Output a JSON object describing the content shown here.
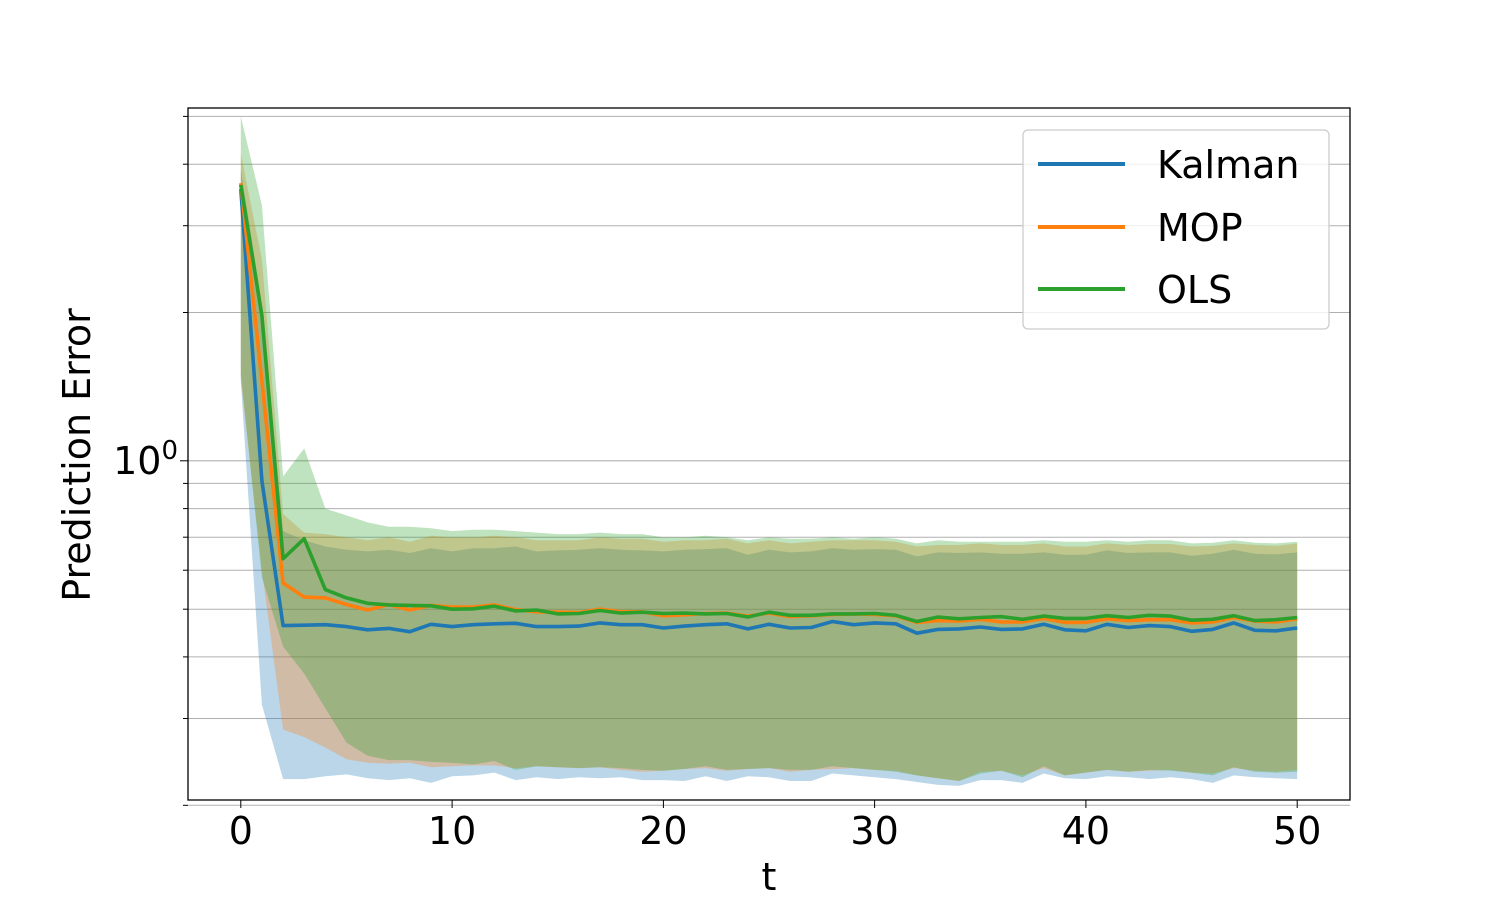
{
  "chart_data": {
    "type": "line",
    "xlabel": "t",
    "ylabel": "Prediction Error",
    "yscale": "log",
    "xlim": [
      -2.5,
      52.5
    ],
    "ylim": [
      0.205,
      5.2
    ],
    "x_ticks": [
      0,
      10,
      20,
      30,
      40,
      50
    ],
    "x_tick_labels": [
      "0",
      "10",
      "20",
      "30",
      "40",
      "50"
    ],
    "y_major_ticks": [
      1.0
    ],
    "y_major_tick_label": "10",
    "y_major_tick_exponent": "0",
    "y_minor_ticks": [
      0.2,
      0.3,
      0.4,
      0.5,
      0.6,
      0.7,
      0.8,
      0.9,
      2,
      3,
      4,
      5
    ],
    "grid": "horizontal, major and minor",
    "legend_position": "top-right",
    "series": [
      {
        "name": "Kalman",
        "color": "#1f77b4",
        "fill_alpha": 0.3,
        "x": [
          0,
          1,
          2,
          3,
          4,
          5,
          6,
          7,
          8,
          9,
          10,
          11,
          12,
          13,
          14,
          15,
          16,
          17,
          18,
          19,
          20,
          21,
          22,
          23,
          24,
          25,
          26,
          27,
          28,
          29,
          30,
          31,
          32,
          33,
          34,
          35,
          36,
          37,
          38,
          39,
          40,
          41,
          42,
          43,
          44,
          45,
          46,
          47,
          48,
          49,
          50
        ],
        "mean": [
          3.56,
          0.91,
          0.463,
          0.464,
          0.465,
          0.461,
          0.454,
          0.457,
          0.45,
          0.466,
          0.461,
          0.465,
          0.467,
          0.468,
          0.461,
          0.461,
          0.462,
          0.469,
          0.465,
          0.465,
          0.458,
          0.462,
          0.465,
          0.467,
          0.456,
          0.466,
          0.458,
          0.459,
          0.472,
          0.465,
          0.469,
          0.467,
          0.447,
          0.455,
          0.456,
          0.46,
          0.455,
          0.456,
          0.466,
          0.454,
          0.452,
          0.466,
          0.459,
          0.463,
          0.461,
          0.451,
          0.455,
          0.469,
          0.453,
          0.452,
          0.458
        ],
        "upper": [
          3.9,
          2.08,
          0.72,
          0.69,
          0.67,
          0.66,
          0.655,
          0.66,
          0.65,
          0.665,
          0.655,
          0.665,
          0.665,
          0.67,
          0.655,
          0.658,
          0.66,
          0.665,
          0.66,
          0.658,
          0.655,
          0.66,
          0.662,
          0.665,
          0.645,
          0.66,
          0.652,
          0.655,
          0.665,
          0.66,
          0.662,
          0.66,
          0.64,
          0.652,
          0.65,
          0.652,
          0.648,
          0.648,
          0.652,
          0.645,
          0.645,
          0.658,
          0.65,
          0.652,
          0.652,
          0.642,
          0.648,
          0.66,
          0.648,
          0.646,
          0.652
        ],
        "lower": [
          1.45,
          0.32,
          0.226,
          0.226,
          0.229,
          0.231,
          0.227,
          0.225,
          0.227,
          0.222,
          0.229,
          0.23,
          0.233,
          0.225,
          0.228,
          0.226,
          0.228,
          0.227,
          0.228,
          0.225,
          0.225,
          0.224,
          0.229,
          0.224,
          0.229,
          0.228,
          0.224,
          0.224,
          0.232,
          0.23,
          0.228,
          0.226,
          0.223,
          0.22,
          0.219,
          0.225,
          0.225,
          0.222,
          0.232,
          0.227,
          0.226,
          0.229,
          0.228,
          0.226,
          0.228,
          0.226,
          0.222,
          0.23,
          0.228,
          0.227,
          0.226
        ]
      },
      {
        "name": "MOP",
        "color": "#ff7f0e",
        "fill_alpha": 0.3,
        "x": [
          0,
          1,
          2,
          3,
          4,
          5,
          6,
          7,
          8,
          9,
          10,
          11,
          12,
          13,
          14,
          15,
          16,
          17,
          18,
          19,
          20,
          21,
          22,
          23,
          24,
          25,
          26,
          27,
          28,
          29,
          30,
          31,
          32,
          33,
          34,
          35,
          36,
          37,
          38,
          39,
          40,
          41,
          42,
          43,
          44,
          45,
          46,
          47,
          48,
          49,
          50
        ],
        "mean": [
          3.66,
          1.45,
          0.565,
          0.529,
          0.527,
          0.511,
          0.498,
          0.511,
          0.498,
          0.509,
          0.505,
          0.505,
          0.51,
          0.499,
          0.494,
          0.493,
          0.492,
          0.5,
          0.494,
          0.494,
          0.485,
          0.487,
          0.49,
          0.491,
          0.484,
          0.491,
          0.483,
          0.485,
          0.488,
          0.489,
          0.488,
          0.485,
          0.47,
          0.474,
          0.473,
          0.477,
          0.471,
          0.471,
          0.479,
          0.47,
          0.47,
          0.478,
          0.474,
          0.476,
          0.476,
          0.469,
          0.471,
          0.481,
          0.473,
          0.471,
          0.478
        ],
        "upper": [
          4.2,
          2.56,
          0.78,
          0.715,
          0.71,
          0.7,
          0.69,
          0.7,
          0.685,
          0.705,
          0.7,
          0.7,
          0.705,
          0.7,
          0.69,
          0.69,
          0.69,
          0.7,
          0.695,
          0.695,
          0.685,
          0.69,
          0.69,
          0.695,
          0.68,
          0.69,
          0.68,
          0.685,
          0.69,
          0.69,
          0.69,
          0.685,
          0.67,
          0.675,
          0.675,
          0.68,
          0.675,
          0.675,
          0.68,
          0.67,
          0.67,
          0.68,
          0.675,
          0.678,
          0.678,
          0.67,
          0.672,
          0.68,
          0.675,
          0.672,
          0.68
        ],
        "lower": [
          1.47,
          0.6,
          0.285,
          0.275,
          0.262,
          0.248,
          0.244,
          0.243,
          0.244,
          0.239,
          0.24,
          0.241,
          0.241,
          0.238,
          0.24,
          0.239,
          0.238,
          0.239,
          0.236,
          0.234,
          0.235,
          0.237,
          0.238,
          0.235,
          0.237,
          0.238,
          0.234,
          0.236,
          0.237,
          0.238,
          0.236,
          0.235,
          0.23,
          0.227,
          0.224,
          0.234,
          0.235,
          0.23,
          0.238,
          0.23,
          0.233,
          0.236,
          0.234,
          0.235,
          0.236,
          0.233,
          0.232,
          0.238,
          0.235,
          0.234,
          0.236
        ]
      },
      {
        "name": "OLS",
        "color": "#2ca02c",
        "fill_alpha": 0.3,
        "x": [
          0,
          1,
          2,
          3,
          4,
          5,
          6,
          7,
          8,
          9,
          10,
          11,
          12,
          13,
          14,
          15,
          16,
          17,
          18,
          19,
          20,
          21,
          22,
          23,
          24,
          25,
          26,
          27,
          28,
          29,
          30,
          31,
          32,
          33,
          34,
          35,
          36,
          37,
          38,
          39,
          40,
          41,
          42,
          43,
          44,
          45,
          46,
          47,
          48,
          49,
          50
        ],
        "mean": [
          3.63,
          1.97,
          0.633,
          0.695,
          0.548,
          0.527,
          0.514,
          0.51,
          0.509,
          0.508,
          0.5,
          0.501,
          0.507,
          0.496,
          0.498,
          0.489,
          0.49,
          0.497,
          0.491,
          0.493,
          0.49,
          0.491,
          0.489,
          0.49,
          0.482,
          0.493,
          0.486,
          0.486,
          0.489,
          0.489,
          0.49,
          0.486,
          0.472,
          0.482,
          0.478,
          0.481,
          0.483,
          0.477,
          0.484,
          0.479,
          0.479,
          0.485,
          0.481,
          0.486,
          0.484,
          0.475,
          0.477,
          0.485,
          0.474,
          0.476,
          0.481
        ],
        "upper": [
          5.0,
          3.3,
          0.93,
          1.06,
          0.8,
          0.775,
          0.75,
          0.735,
          0.735,
          0.73,
          0.72,
          0.725,
          0.725,
          0.72,
          0.715,
          0.71,
          0.71,
          0.715,
          0.71,
          0.71,
          0.7,
          0.7,
          0.705,
          0.7,
          0.69,
          0.7,
          0.695,
          0.695,
          0.7,
          0.695,
          0.7,
          0.695,
          0.68,
          0.69,
          0.685,
          0.685,
          0.685,
          0.685,
          0.69,
          0.685,
          0.685,
          0.69,
          0.685,
          0.69,
          0.69,
          0.68,
          0.682,
          0.69,
          0.682,
          0.68,
          0.685
        ],
        "lower": [
          1.5,
          0.58,
          0.42,
          0.37,
          0.315,
          0.268,
          0.252,
          0.247,
          0.247,
          0.245,
          0.244,
          0.242,
          0.246,
          0.236,
          0.24,
          0.239,
          0.238,
          0.239,
          0.238,
          0.236,
          0.235,
          0.237,
          0.24,
          0.236,
          0.237,
          0.238,
          0.236,
          0.236,
          0.24,
          0.238,
          0.236,
          0.234,
          0.23,
          0.227,
          0.224,
          0.232,
          0.235,
          0.228,
          0.24,
          0.23,
          0.233,
          0.236,
          0.234,
          0.236,
          0.235,
          0.233,
          0.23,
          0.239,
          0.234,
          0.233,
          0.234
        ]
      }
    ]
  }
}
